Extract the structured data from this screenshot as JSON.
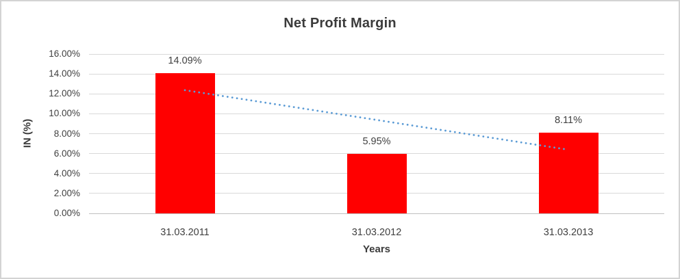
{
  "chart_data": {
    "type": "bar",
    "title": "Net Profit Margin",
    "categories": [
      "31.03.2011",
      "31.03.2012",
      "31.03.2013"
    ],
    "values": [
      14.09,
      5.95,
      8.11
    ],
    "data_labels": [
      "14.09%",
      "5.95%",
      "8.11%"
    ],
    "xlabel": "Years",
    "ylabel": "IN (%)",
    "ylim": [
      0,
      16
    ],
    "ytick_step": 2,
    "ytick_labels": [
      "0.00%",
      "2.00%",
      "4.00%",
      "6.00%",
      "8.00%",
      "10.00%",
      "12.00%",
      "14.00%",
      "16.00%"
    ],
    "grid": true,
    "legend": "none",
    "bar_color": "#FF0000",
    "trendline": {
      "type": "linear",
      "style": "dotted",
      "color": "#5B9BD5",
      "start_value": 12.37,
      "end_value": 6.39
    },
    "colors": {
      "text": "#404040",
      "title_text": "#3B3B3B",
      "gridline": "#D9D9D9",
      "axis_line": "#BFBFBF",
      "frame_border": "#D3D3D3",
      "background": "#FFFFFF"
    }
  }
}
